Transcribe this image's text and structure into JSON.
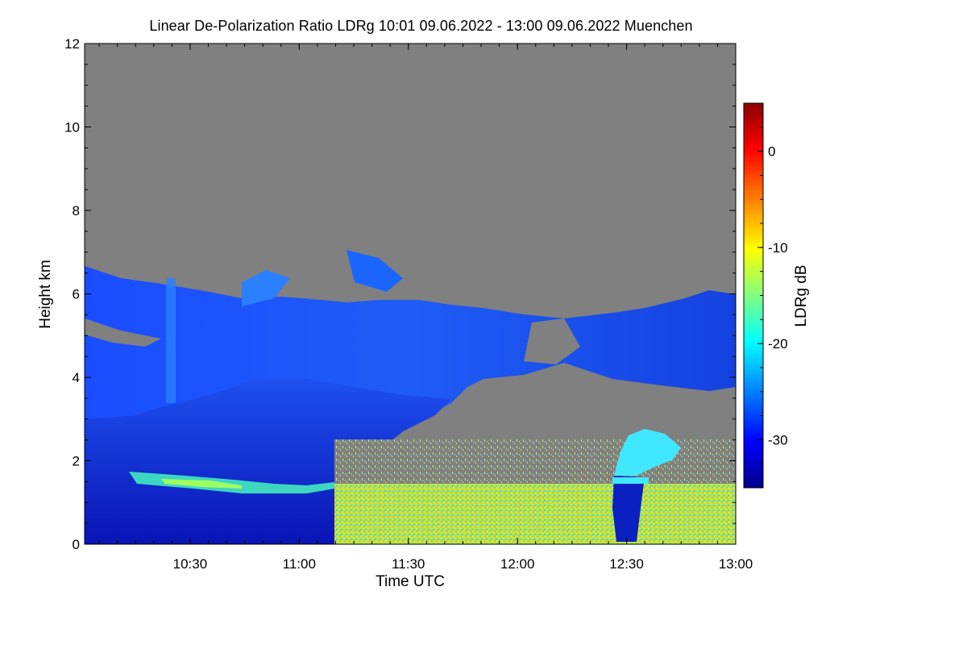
{
  "chart_data": {
    "type": "heatmap",
    "title": "Linear De-Polarization Ratio LDRg   10:01 09.06.2022 - 13:00 09.06.2022 Muenchen",
    "xlabel": "Time UTC",
    "ylabel": "Height km",
    "x_ticks": [
      "10:30",
      "11:00",
      "11:30",
      "12:00",
      "12:30",
      "13:00"
    ],
    "x_tick_minutes": [
      30,
      60,
      90,
      120,
      150,
      180
    ],
    "xlim_minutes_after_10": [
      1,
      180
    ],
    "y_ticks": [
      0,
      2,
      4,
      6,
      8,
      10,
      12
    ],
    "ylim": [
      0,
      12
    ],
    "colorbar": {
      "label": "LDRg dB",
      "ticks": [
        0,
        -10,
        -20,
        -30
      ],
      "range": [
        -35,
        5
      ],
      "colors": [
        "#00008b",
        "#0000ff",
        "#0080ff",
        "#00ffff",
        "#80ff80",
        "#ffff00",
        "#ff8000",
        "#ff0000",
        "#8b0000"
      ]
    },
    "no_data_color": "#808080",
    "features": [
      {
        "name": "cirrus",
        "t_start_min": 1,
        "t_end_min": 180,
        "height_min_km": 3.5,
        "height_max_km": 7.0,
        "ldr_db": -30
      },
      {
        "name": "lower depolarizing layer",
        "t_start_min": 1,
        "t_end_min": 65,
        "height_min_km": 0,
        "height_max_km": 3.3,
        "ldr_db": -32
      },
      {
        "name": "aerosol band",
        "t_start_min": 14,
        "t_end_min": 65,
        "height_min_km": 1.2,
        "height_max_km": 1.7,
        "ldr_db": -20
      },
      {
        "name": "boundary layer noise",
        "t_start_min": 65,
        "t_end_min": 180,
        "height_min_km": 0,
        "height_max_km": 1.5,
        "ldr_db": -14
      },
      {
        "name": "convective plume",
        "t_start_min": 146,
        "t_end_min": 160,
        "height_min_km": 0,
        "height_max_km": 2.8,
        "ldr_db": -22
      }
    ]
  }
}
